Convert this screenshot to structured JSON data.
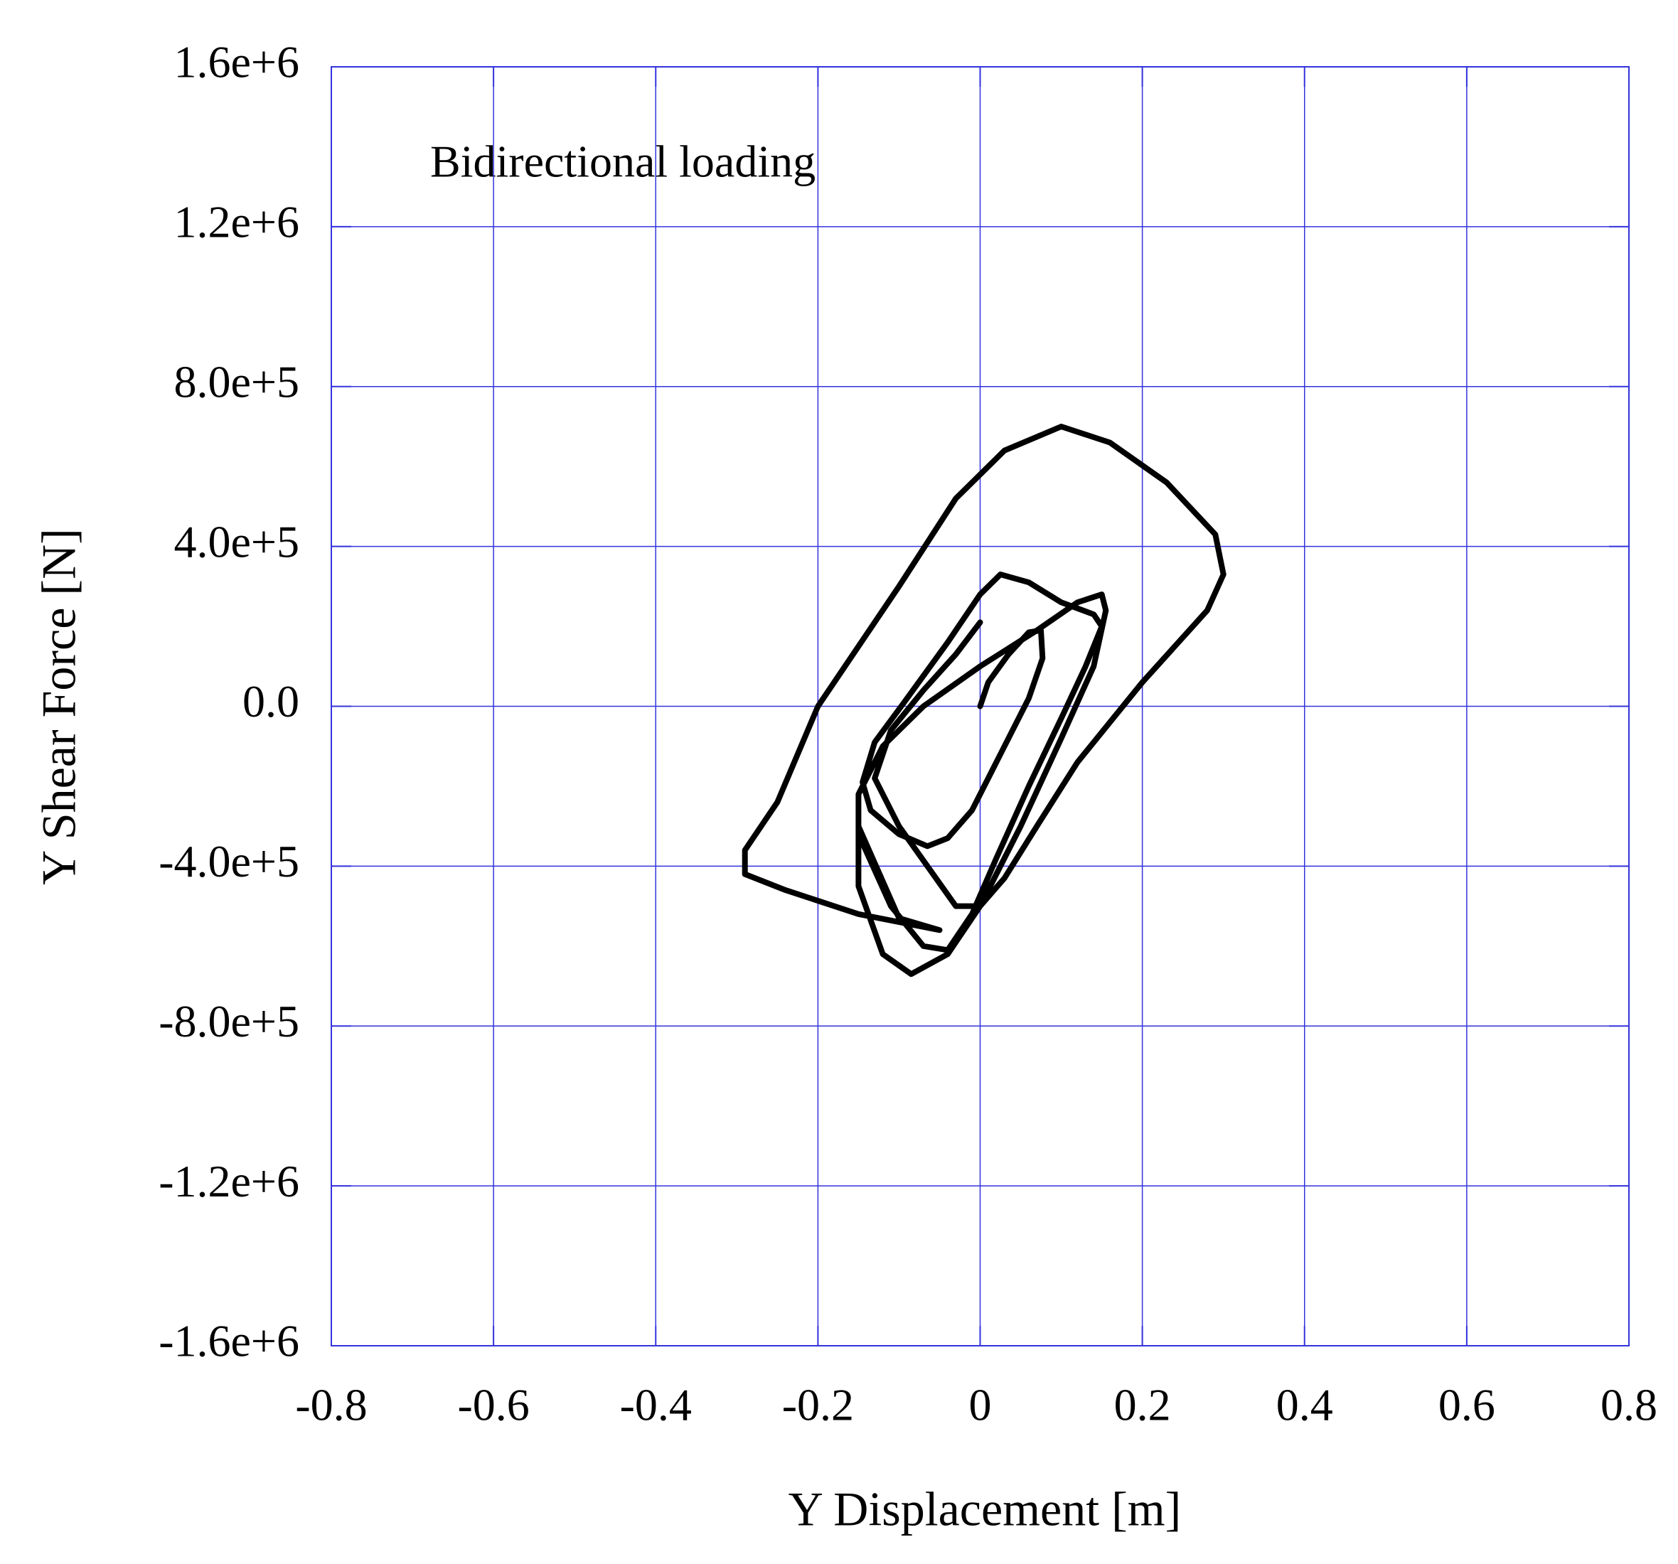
{
  "chart_data": {
    "type": "line",
    "annotation": "Bidirectional loading",
    "xlabel": "Y Displacement [m]",
    "ylabel": "Y Shear Force [N]",
    "xlim": [
      -0.8,
      0.8
    ],
    "ylim": [
      -1600000,
      1600000
    ],
    "xticks": [
      -0.8,
      -0.6,
      -0.4,
      -0.2,
      0,
      0.2,
      0.4,
      0.6,
      0.8
    ],
    "yticks": [
      {
        "value": -1600000,
        "label": "-1.6e+6"
      },
      {
        "value": -1200000,
        "label": "-1.2e+6"
      },
      {
        "value": -800000,
        "label": "-8.0e+5"
      },
      {
        "value": -400000,
        "label": "-4.0e+5"
      },
      {
        "value": 0,
        "label": "0.0"
      },
      {
        "value": 400000,
        "label": "4.0e+5"
      },
      {
        "value": 800000,
        "label": "8.0e+5"
      },
      {
        "value": 1200000,
        "label": "1.2e+6"
      },
      {
        "value": 1600000,
        "label": "1.6e+6"
      }
    ],
    "grid": true,
    "grid_color": "#3333dd",
    "x": [
      0,
      0.01,
      0.035,
      0.06,
      0.075,
      0.077,
      0.06,
      0.025,
      -0.01,
      -0.04,
      -0.065,
      -0.1,
      -0.135,
      -0.145,
      -0.13,
      -0.09,
      -0.04,
      0,
      0.025,
      0.06,
      0.1,
      0.14,
      0.15,
      0.13,
      0.1,
      0.06,
      0.02,
      -0.01,
      -0.04,
      -0.07,
      -0.11,
      -0.15,
      -0.15,
      -0.12,
      -0.07,
      0,
      0.07,
      0.12,
      0.15,
      0.155,
      0.14,
      0.1,
      0.05,
      0,
      -0.04,
      -0.085,
      -0.12,
      -0.15,
      -0.15,
      -0.1,
      -0.05,
      -0.15,
      -0.24,
      -0.29,
      -0.29,
      -0.25,
      -0.2,
      -0.1,
      -0.03,
      0.03,
      0.1,
      0.16,
      0.23,
      0.29,
      0.3,
      0.28,
      0.2,
      0.12,
      0.07,
      0.03,
      0,
      -0.03,
      -0.1,
      -0.13,
      -0.11,
      -0.07,
      -0.03,
      0
    ],
    "series": [
      {
        "color": "#000000",
        "values": [
          0,
          60000,
          130000,
          185000,
          190000,
          120000,
          20000,
          -120000,
          -260000,
          -330000,
          -350000,
          -320000,
          -260000,
          -190000,
          -90000,
          20000,
          160000,
          280000,
          330000,
          310000,
          260000,
          230000,
          200000,
          100000,
          -30000,
          -200000,
          -380000,
          -520000,
          -610000,
          -600000,
          -500000,
          -320000,
          -220000,
          -100000,
          0,
          100000,
          190000,
          260000,
          280000,
          240000,
          100000,
          -80000,
          -300000,
          -500000,
          -620000,
          -670000,
          -620000,
          -450000,
          -300000,
          -530000,
          -560000,
          -520000,
          -460000,
          -420000,
          -360000,
          -240000,
          0,
          300000,
          520000,
          640000,
          700000,
          660000,
          560000,
          430000,
          330000,
          240000,
          60000,
          -140000,
          -300000,
          -430000,
          -500000,
          -500000,
          -300000,
          -180000,
          -60000,
          40000,
          130000,
          210000
        ]
      }
    ]
  }
}
